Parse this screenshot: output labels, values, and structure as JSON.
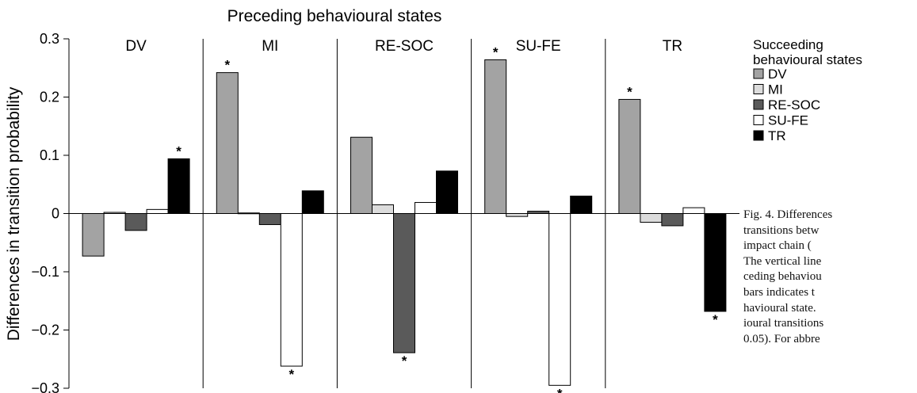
{
  "chart_data": {
    "type": "bar",
    "title": "Preceding behavioural states",
    "ylabel": "Differences in transition probability",
    "ylim": [
      -0.3,
      0.3
    ],
    "yticks": [
      "0.3",
      "0.2",
      "0.1",
      "0",
      "−0.1",
      "−0.2",
      "−0.3"
    ],
    "ytick_values": [
      0.3,
      0.2,
      0.1,
      0,
      -0.1,
      -0.2,
      -0.3
    ],
    "grid": false,
    "legend_position": "right",
    "legend_title": [
      "Succeeding",
      "behavioural states"
    ],
    "significance_marker": "*",
    "categories": [
      "DV",
      "MI",
      "RE-SOC",
      "SU-FE",
      "TR"
    ],
    "series": [
      {
        "name": "DV",
        "color": "#a3a3a3",
        "values": [
          -0.073,
          0.242,
          0.131,
          0.264,
          0.196
        ],
        "significant": [
          false,
          true,
          false,
          true,
          true
        ]
      },
      {
        "name": "MI",
        "color": "#dcdcdc",
        "values": [
          0.002,
          0.001,
          0.015,
          -0.005,
          -0.015
        ],
        "significant": [
          false,
          false,
          false,
          false,
          false
        ]
      },
      {
        "name": "RE-SOC",
        "color": "#5a5a5a",
        "values": [
          -0.029,
          -0.019,
          -0.239,
          0.004,
          -0.021
        ],
        "significant": [
          false,
          false,
          true,
          false,
          false
        ]
      },
      {
        "name": "SU-FE",
        "color": "#ffffff",
        "values": [
          0.007,
          -0.262,
          0.019,
          -0.295,
          0.01
        ],
        "significant": [
          false,
          true,
          false,
          true,
          false
        ]
      },
      {
        "name": "TR",
        "color": "#000000",
        "values": [
          0.094,
          0.039,
          0.073,
          0.03,
          -0.168
        ],
        "significant": [
          true,
          false,
          false,
          false,
          true
        ]
      }
    ]
  },
  "caption_lines": [
    "Fig. 4. Differences",
    "transitions betw",
    "impact chain (",
    "The vertical line",
    "ceding behaviou",
    "bars indicates t",
    "havioural state.",
    "ioural transitions",
    "0.05). For abbre"
  ]
}
